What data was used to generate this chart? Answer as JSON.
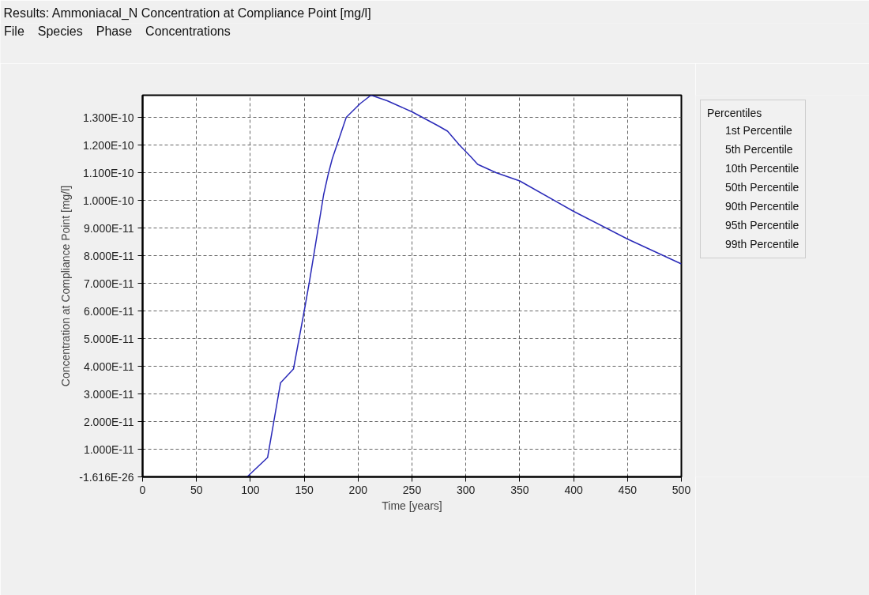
{
  "chart_data": {
    "type": "line",
    "title": "Results: Ammoniacal_N Concentration at Compliance Point [mg/l]",
    "xlabel": "Time [years]",
    "ylabel": "Concentration at Compliance Point [mg/l]",
    "legend_title": "Percentiles",
    "annotations": [
      "File",
      "Species",
      "Phase",
      "Concentrations",
      "1st Percentile",
      "5th Percentile",
      "10th Percentile",
      "50th Percentile",
      "90th Percentile",
      "95th Percentile"
    ],
    "series": [
      {
        "name": "99th Percentile",
        "color": "#2a2ab8",
        "x": [
          97,
          116,
          128,
          140,
          150,
          155,
          168,
          172,
          176,
          189,
          202,
          212,
          227,
          250,
          274,
          283,
          294,
          304,
          311,
          328,
          350,
          400,
          450,
          500
        ],
        "values": [
          0,
          7e-12,
          3.4e-11,
          3.9e-11,
          6e-11,
          7.1e-11,
          1.02e-10,
          1.09e-10,
          1.15e-10,
          1.3e-10,
          1.35e-10,
          1.38e-10,
          1.36e-10,
          1.32e-10,
          1.27e-10,
          1.25e-10,
          1.2e-10,
          1.16e-10,
          1.13e-10,
          1.1e-10,
          1.07e-10,
          9.6e-11,
          8.6e-11,
          7.7e-11
        ]
      }
    ],
    "xlim": [
      0,
      500
    ],
    "xticks": [
      0,
      50,
      100,
      150,
      200,
      250,
      300,
      350,
      400,
      450,
      500
    ],
    "ylim": [
      -1.616e-26,
      1.38e-10
    ],
    "yticks": [
      {
        "value": -1.616e-26,
        "label": "-1.616E-26"
      },
      {
        "value": 1e-11,
        "label": "1.000E-11"
      },
      {
        "value": 2e-11,
        "label": "2.000E-11"
      },
      {
        "value": 3e-11,
        "label": "3.000E-11"
      },
      {
        "value": 4e-11,
        "label": "4.000E-11"
      },
      {
        "value": 5e-11,
        "label": "5.000E-11"
      },
      {
        "value": 6e-11,
        "label": "6.000E-11"
      },
      {
        "value": 7e-11,
        "label": "7.000E-11"
      },
      {
        "value": 8e-11,
        "label": "8.000E-11"
      },
      {
        "value": 9e-11,
        "label": "9.000E-11"
      },
      {
        "value": 1e-10,
        "label": "1.000E-10"
      },
      {
        "value": 1.1e-10,
        "label": "1.100E-10"
      },
      {
        "value": 1.2e-10,
        "label": "1.200E-10"
      },
      {
        "value": 1.3e-10,
        "label": "1.300E-10"
      }
    ],
    "grid": true,
    "legend": "right",
    "marker": "none",
    "line_style": "solid"
  }
}
